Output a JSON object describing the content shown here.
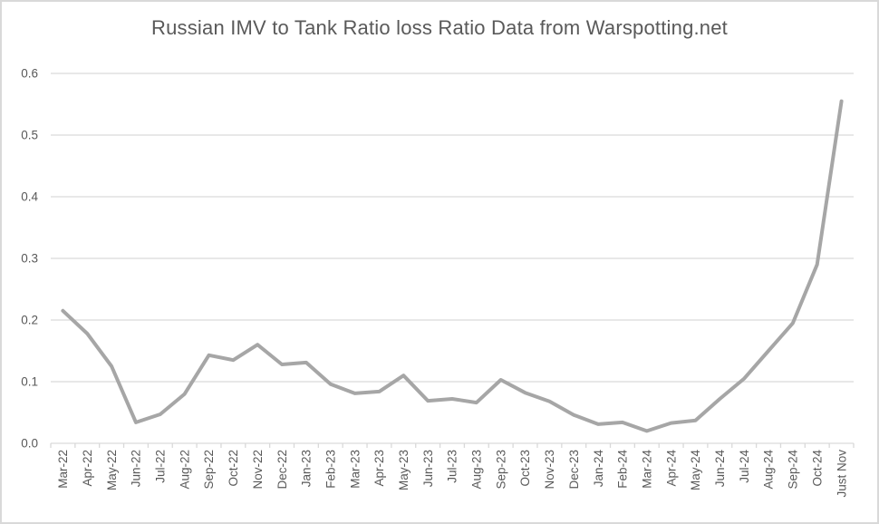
{
  "chart_data": {
    "type": "line",
    "title": "Russian IMV to Tank Ratio loss Ratio Data from Warspotting.net",
    "categories": [
      "Mar-22",
      "Apr-22",
      "May-22",
      "Jun-22",
      "Jul-22",
      "Aug-22",
      "Sep-22",
      "Oct-22",
      "Nov-22",
      "Dec-22",
      "Jan-23",
      "Feb-23",
      "Mar-23",
      "Apr-23",
      "May-23",
      "Jun-23",
      "Jul-23",
      "Aug-23",
      "Sep-23",
      "Oct-23",
      "Nov-23",
      "Dec-23",
      "Jan-24",
      "Feb-24",
      "Mar-24",
      "Apr-24",
      "May-24",
      "Jun-24",
      "Jul-24",
      "Aug-24",
      "Sep-24",
      "Oct-24",
      "Just Nov"
    ],
    "values": [
      0.215,
      0.178,
      0.125,
      0.034,
      0.047,
      0.08,
      0.143,
      0.135,
      0.16,
      0.128,
      0.131,
      0.096,
      0.081,
      0.084,
      0.11,
      0.069,
      0.072,
      0.066,
      0.103,
      0.082,
      0.068,
      0.046,
      0.031,
      0.034,
      0.02,
      0.033,
      0.037,
      0.072,
      0.105,
      0.15,
      0.195,
      0.29,
      0.555
    ],
    "xlabel": "",
    "ylabel": "",
    "ylim": [
      0,
      0.6
    ],
    "y_tick_labels": [
      "0.0",
      "0.1",
      "0.2",
      "0.3",
      "0.4",
      "0.5",
      "0.6"
    ],
    "grid": true,
    "legend": false,
    "colors": {
      "line": "#a6a6a6",
      "text": "#595959",
      "gridline": "#d9d9d9",
      "axis": "#d9d9d9",
      "background": "#ffffff",
      "border": "#d9d9d9"
    }
  }
}
